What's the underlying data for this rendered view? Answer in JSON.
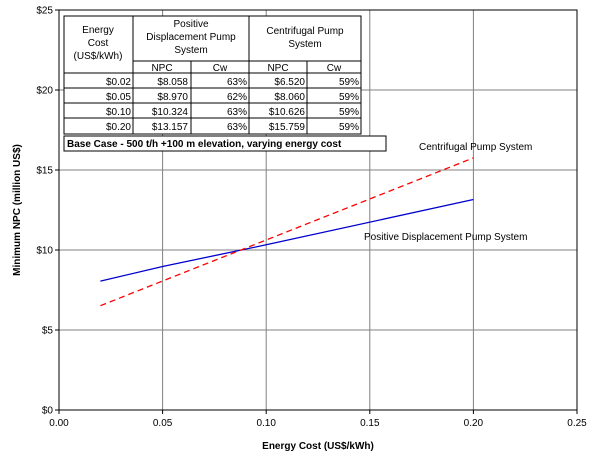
{
  "chart_data": {
    "type": "line",
    "xlabel": "Energy Cost (US$/kWh)",
    "ylabel": "Minimum NPC (million US$)",
    "xlim": [
      0,
      0.25
    ],
    "ylim": [
      0,
      25
    ],
    "x_ticks": [
      "0.00",
      "0.05",
      "0.10",
      "0.15",
      "0.20",
      "0.25"
    ],
    "y_ticks": [
      "$0",
      "$5",
      "$10",
      "$15",
      "$20",
      "$25"
    ],
    "grid": true,
    "series": [
      {
        "name": "Positive Displacement Pump System",
        "color": "#0000cc",
        "dash": "solid",
        "x": [
          0.02,
          0.05,
          0.1,
          0.2
        ],
        "y": [
          8.058,
          8.97,
          10.324,
          13.157
        ]
      },
      {
        "name": "Centrifugal Pump System",
        "color": "#ff0000",
        "dash": "dashed",
        "x": [
          0.02,
          0.05,
          0.1,
          0.2
        ],
        "y": [
          6.52,
          8.06,
          10.626,
          15.759
        ]
      }
    ],
    "annotation": "Base Case - 500 t/h +100 m elevation, varying energy cost",
    "table": {
      "header_energy": [
        "Energy",
        "Cost",
        "(US$/kWh)"
      ],
      "header_pd": [
        "Positive",
        "Displacement Pump",
        "System"
      ],
      "header_cf": [
        "Centrifugal Pump",
        "System"
      ],
      "subheaders": [
        "NPC",
        "Cw",
        "NPC",
        "Cw"
      ],
      "rows": [
        [
          "$0.02",
          "$8.058",
          "63%",
          "$6.520",
          "59%"
        ],
        [
          "$0.05",
          "$8.970",
          "62%",
          "$8.060",
          "59%"
        ],
        [
          "$0.10",
          "$10.324",
          "63%",
          "$10.626",
          "59%"
        ],
        [
          "$0.20",
          "$13.157",
          "63%",
          "$15.759",
          "59%"
        ]
      ]
    }
  }
}
